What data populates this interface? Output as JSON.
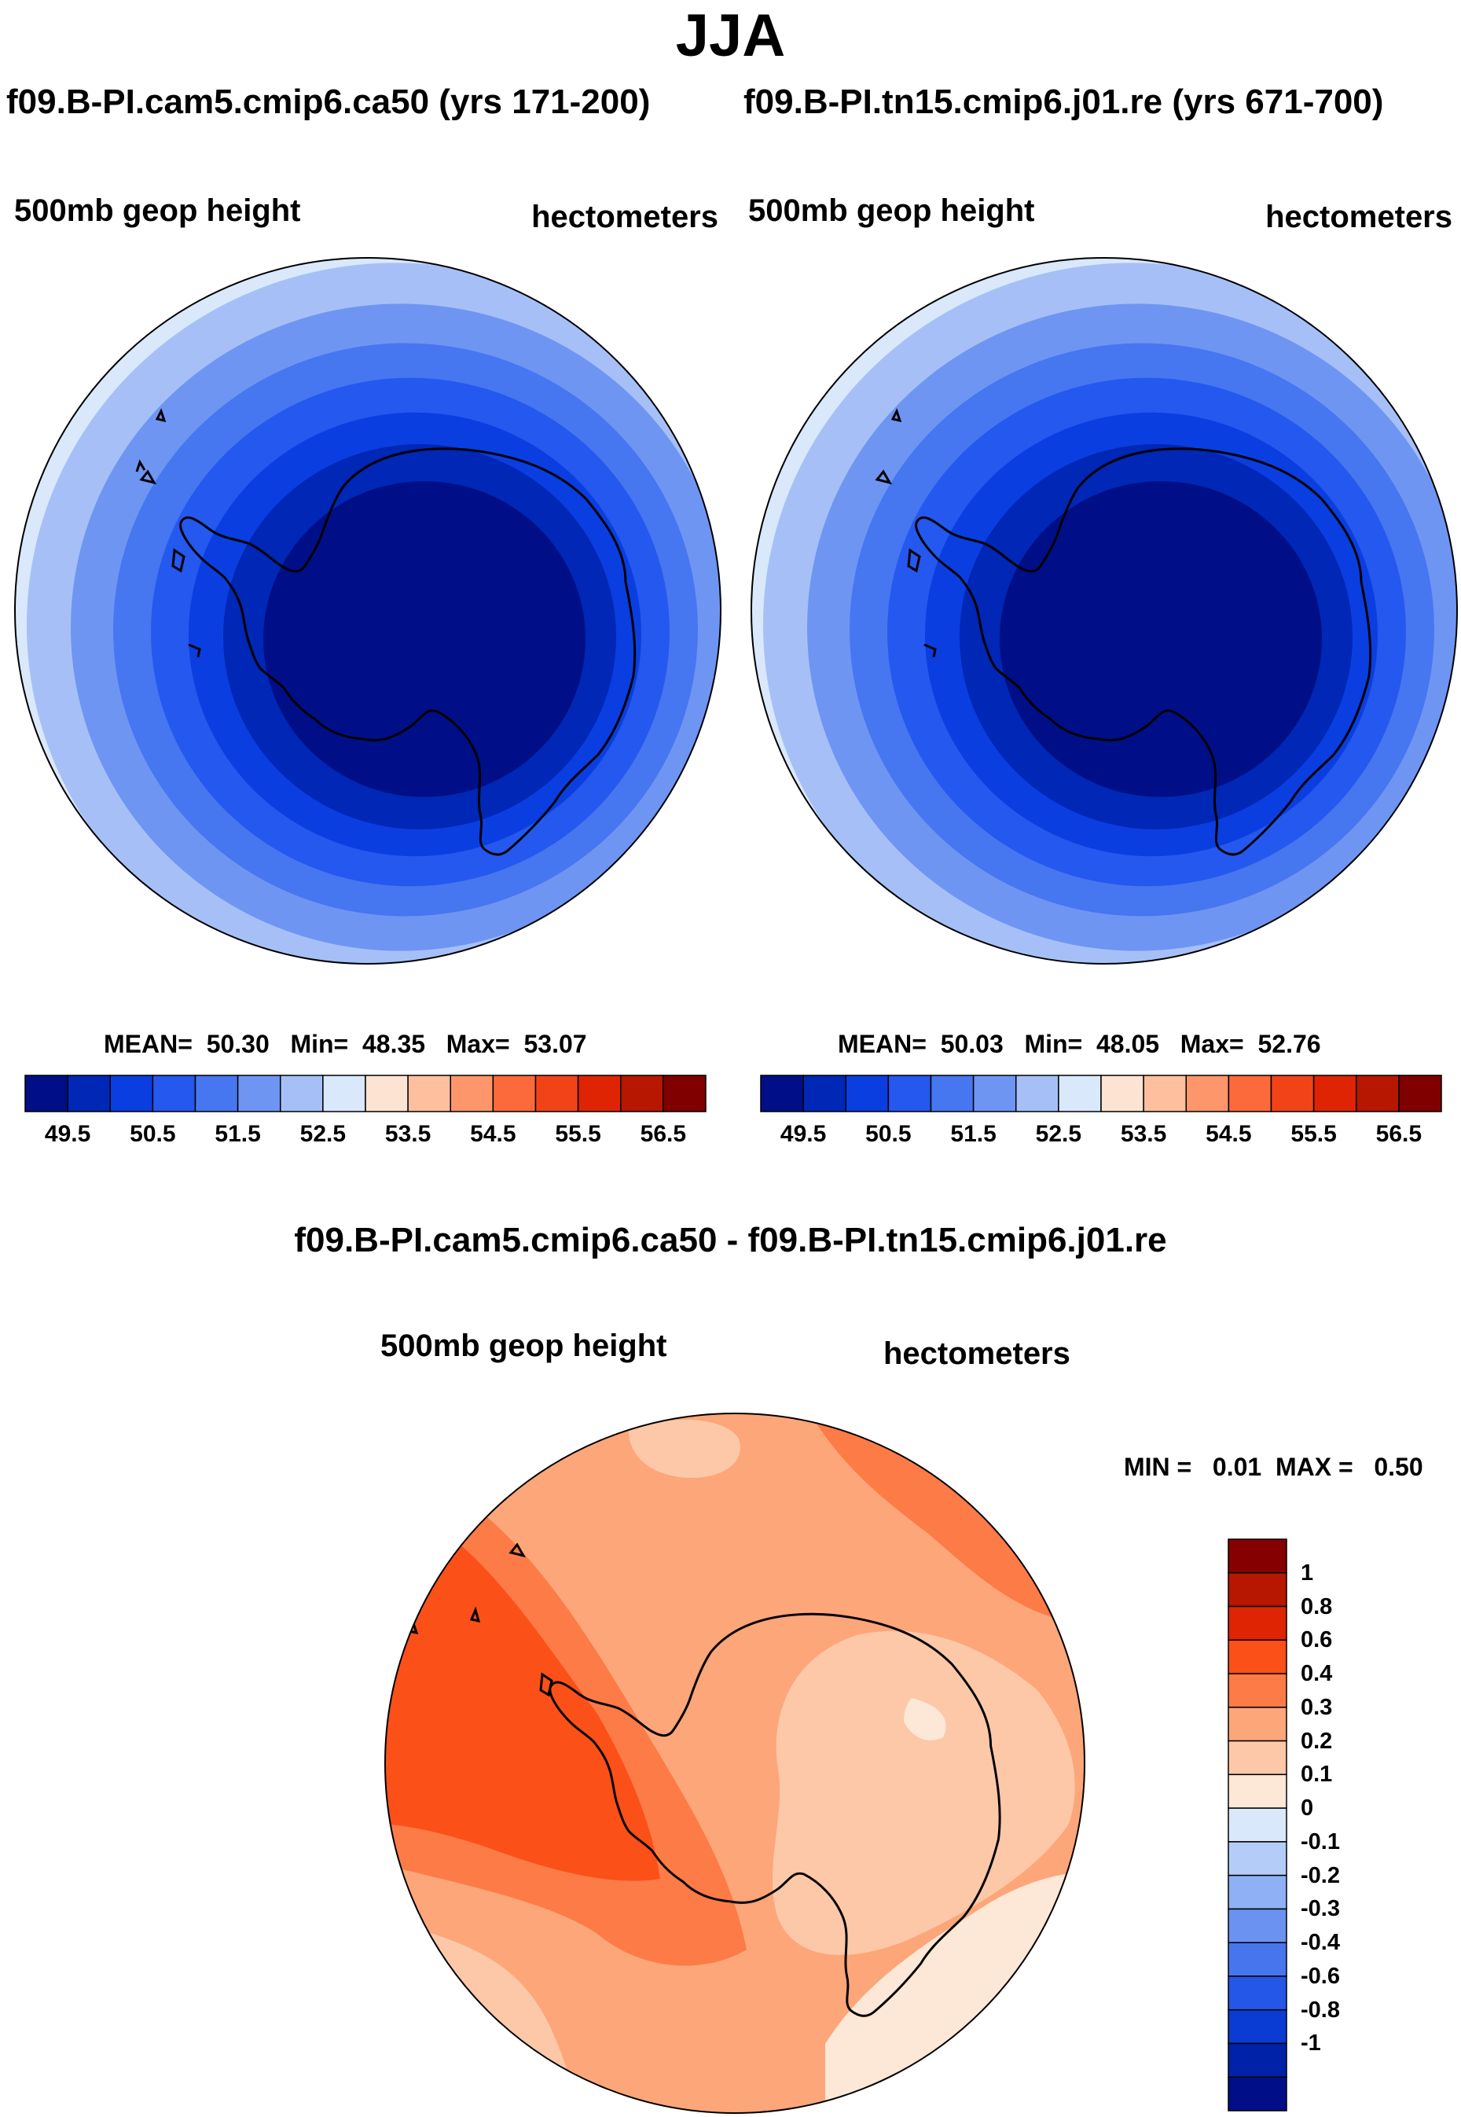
{
  "title": "JJA",
  "case_titles": {
    "left": "f09.B-PI.cam5.cmip6.ca50 (yrs 171-200)",
    "right": "f09.B-PI.tn15.cmip6.j01.re (yrs 671-700)"
  },
  "panels": [
    {
      "variable": "500mb geop height",
      "units": "hectometers",
      "stats": {
        "mean_label": "MEAN=",
        "mean": "50.30",
        "min_label": "Min=",
        "min": "48.35",
        "max_label": "Max=",
        "max": "53.07"
      }
    },
    {
      "variable": "500mb geop height",
      "units": "hectometers",
      "stats": {
        "mean_label": "MEAN=",
        "mean": "50.03",
        "min_label": "Min=",
        "min": "48.05",
        "max_label": "Max=",
        "max": "52.76"
      }
    }
  ],
  "colorbar_top": {
    "colors": [
      "#000f87",
      "#0027b5",
      "#0a3ee0",
      "#2458ee",
      "#4676f0",
      "#6f95f3",
      "#a6c0f7",
      "#d9e8fb",
      "#fde4d2",
      "#fdbf9d",
      "#fd966a",
      "#fc6a3b",
      "#f24318",
      "#df2404",
      "#b71600",
      "#800000"
    ],
    "labels": [
      "49.5",
      "50.5",
      "51.5",
      "52.5",
      "53.5",
      "54.5",
      "55.5",
      "56.5"
    ]
  },
  "diff_panel": {
    "title": "f09.B-PI.cam5.cmip6.ca50 - f09.B-PI.tn15.cmip6.j01.re",
    "variable": "500mb geop height",
    "units": "hectometers",
    "stats": {
      "min_label": "MIN =",
      "min": "0.01",
      "max_label": "MAX =",
      "max": "0.50"
    }
  },
  "colorbar_diff": {
    "colors": [
      "#850000",
      "#b71600",
      "#df2404",
      "#fc5019",
      "#fd7b47",
      "#fda679",
      "#fdc8a8",
      "#fde7d6",
      "#d9e8fb",
      "#b4cdf8",
      "#8fb0f4",
      "#6b92f1",
      "#4675ee",
      "#2557e6",
      "#0a3bd2",
      "#0022a8",
      "#000f87"
    ],
    "labels": [
      "1",
      "0.8",
      "0.6",
      "0.4",
      "0.3",
      "0.2",
      "0.1",
      "0",
      "-0.1",
      "-0.2",
      "-0.3",
      "-0.4",
      "-0.6",
      "-0.8",
      "-1"
    ]
  },
  "map_colors": {
    "clim_rings": [
      "#000f87",
      "#0027b5",
      "#0a3ee0",
      "#2458ee",
      "#4676f0",
      "#6f95f3",
      "#a6c0f7",
      "#d9e8fb"
    ],
    "diff": {
      "d06": "#fc5019",
      "d04": "#fd7b47",
      "d03": "#fda679",
      "d02": "#fdc8a8",
      "d01": "#fde7d6"
    }
  }
}
